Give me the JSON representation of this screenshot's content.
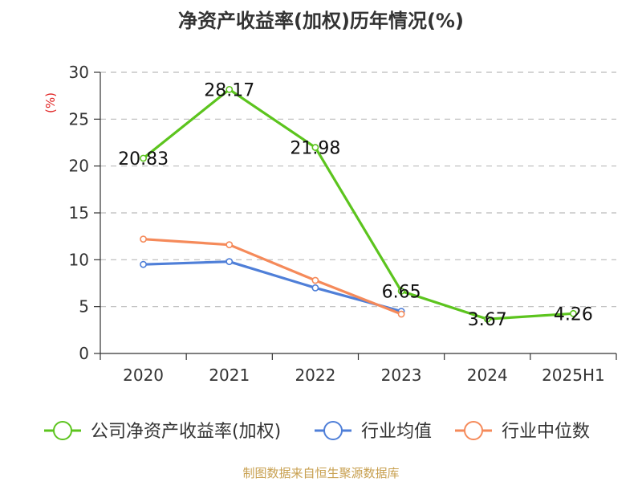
{
  "title": "净资产收益率(加权)历年情况(%)",
  "source": "制图数据来自恒生聚源数据库",
  "chart_data": {
    "type": "line",
    "title": "净资产收益率(加权)历年情况(%)",
    "ylabel": "(%)",
    "xlabel": "",
    "categories": [
      "2020",
      "2021",
      "2022",
      "2023",
      "2024",
      "2025H1"
    ],
    "ylim": [
      0,
      30
    ],
    "yticks": [
      0,
      5,
      10,
      15,
      20,
      25,
      30
    ],
    "grid": true,
    "legend_position": "bottom",
    "series": [
      {
        "name": "公司净资产收益率(加权)",
        "color": "#5cc41e",
        "values": [
          20.83,
          28.17,
          21.98,
          6.65,
          3.67,
          4.26
        ],
        "labels": [
          "20.83",
          "28.17",
          "21.98",
          "6.65",
          "3.67",
          "4.26"
        ]
      },
      {
        "name": "行业均值",
        "color": "#4f7fd8",
        "values": [
          9.5,
          9.8,
          7.0,
          4.5,
          null,
          null
        ]
      },
      {
        "name": "行业中位数",
        "color": "#f58a5a",
        "values": [
          12.2,
          11.6,
          7.8,
          4.2,
          null,
          null
        ]
      }
    ]
  }
}
